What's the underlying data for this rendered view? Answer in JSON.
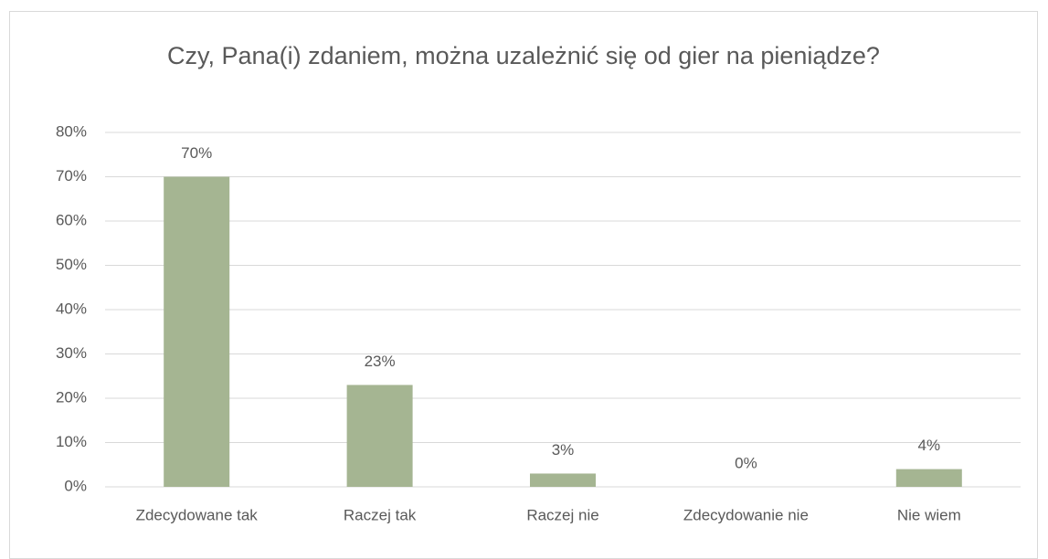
{
  "chart_data": {
    "type": "bar",
    "title": "Czy, Pana(i) zdaniem, można uzależnić się od gier na pieniądze?",
    "categories": [
      "Zdecydowane tak",
      "Raczej tak",
      "Raczej nie",
      "Zdecydowanie nie",
      "Nie wiem"
    ],
    "values": [
      70,
      23,
      3,
      0,
      4
    ],
    "value_labels": [
      "70%",
      "23%",
      "3%",
      "0%",
      "4%"
    ],
    "color": "#a5b592",
    "ylim": [
      0,
      80
    ],
    "yticks": [
      {
        "value": 0,
        "label": "0%"
      },
      {
        "value": 10,
        "label": "10%"
      },
      {
        "value": 20,
        "label": "20%"
      },
      {
        "value": 30,
        "label": "30%"
      },
      {
        "value": 40,
        "label": "40%"
      },
      {
        "value": 50,
        "label": "50%"
      },
      {
        "value": 60,
        "label": "60%"
      },
      {
        "value": 70,
        "label": "70%"
      },
      {
        "value": 80,
        "label": "80%"
      }
    ],
    "grid": true
  }
}
